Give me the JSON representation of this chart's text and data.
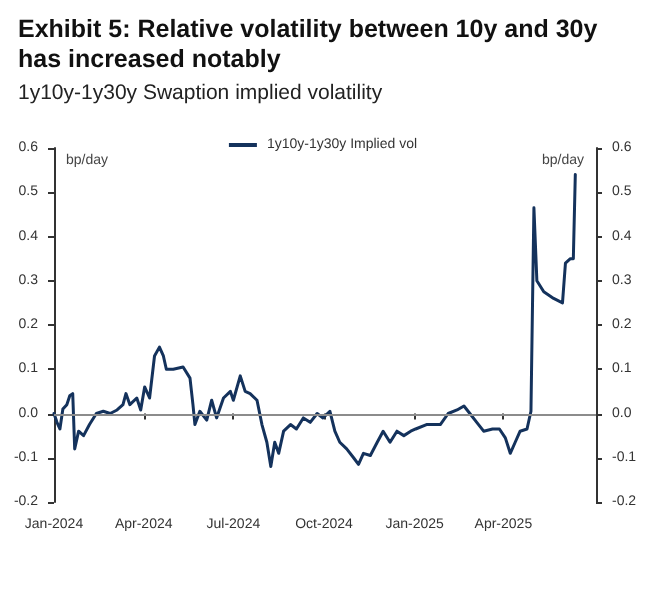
{
  "chart_data": {
    "type": "line",
    "title": "Exhibit 5: Relative volatility between 10y and 30y has increased notably",
    "subtitle": "1y10y-1y30y Swaption implied volatility",
    "ylabel": "bp/day",
    "y2label": "bp/day",
    "legend": "top",
    "grid": false,
    "marker": "none",
    "line_style": "solid",
    "xlim": [
      "2024-01-01",
      "2025-07-04"
    ],
    "xticks": [
      {
        "value": "2024-01-01",
        "label": "Jan-2024"
      },
      {
        "value": "2024-04-01",
        "label": "Apr-2024"
      },
      {
        "value": "2024-07-01",
        "label": "Jul-2024"
      },
      {
        "value": "2024-10-01",
        "label": "Oct-2024"
      },
      {
        "value": "2025-01-01",
        "label": "Jan-2025"
      },
      {
        "value": "2025-04-01",
        "label": "Apr-2025"
      }
    ],
    "ylim": [
      -0.2,
      0.6
    ],
    "yticks": [
      -0.2,
      -0.1,
      {
        "value": 0,
        "label": "0.0"
      },
      0.1,
      0.2,
      0.3,
      0.4,
      0.5,
      0.6
    ],
    "y2lim": [
      -0.2,
      0.6
    ],
    "y2ticks": [
      -0.2,
      -0.1,
      {
        "value": 0,
        "label": "0.0"
      },
      0.1,
      0.2,
      0.3,
      0.4,
      0.5,
      0.6
    ],
    "ref_lines": [
      {
        "axis": "y",
        "value": 0,
        "color": "#8c8c8c"
      }
    ],
    "x": [
      "2024-01-01",
      "2024-01-04",
      "2024-01-07",
      "2024-01-10",
      "2024-01-14",
      "2024-01-17",
      "2024-01-20",
      "2024-01-22",
      "2024-01-26",
      "2024-01-31",
      "2024-02-06",
      "2024-02-13",
      "2024-02-20",
      "2024-02-27",
      "2024-03-05",
      "2024-03-11",
      "2024-03-14",
      "2024-03-18",
      "2024-03-25",
      "2024-03-29",
      "2024-04-02",
      "2024-04-07",
      "2024-04-12",
      "2024-04-17",
      "2024-04-21",
      "2024-04-24",
      "2024-05-01",
      "2024-05-11",
      "2024-05-18",
      "2024-05-21",
      "2024-05-23",
      "2024-05-28",
      "2024-06-04",
      "2024-06-09",
      "2024-06-14",
      "2024-06-21",
      "2024-06-28",
      "2024-07-01",
      "2024-07-08",
      "2024-07-13",
      "2024-07-18",
      "2024-07-25",
      "2024-07-30",
      "2024-08-04",
      "2024-08-08",
      "2024-08-12",
      "2024-08-16",
      "2024-08-21",
      "2024-08-28",
      "2024-09-03",
      "2024-09-10",
      "2024-09-17",
      "2024-09-24",
      "2024-09-30",
      "2024-10-07",
      "2024-10-12",
      "2024-10-17",
      "2024-10-24",
      "2024-10-31",
      "2024-11-05",
      "2024-11-10",
      "2024-11-17",
      "2024-11-24",
      "2024-11-30",
      "2024-12-07",
      "2024-12-14",
      "2024-12-21",
      "2024-12-28",
      "2025-01-02",
      "2025-01-13",
      "2025-01-27",
      "2025-02-04",
      "2025-02-13",
      "2025-02-20",
      "2025-02-26",
      "2025-03-05",
      "2025-03-12",
      "2025-03-21",
      "2025-03-28",
      "2025-04-03",
      "2025-04-08",
      "2025-04-13",
      "2025-04-18",
      "2025-04-25",
      "2025-04-29",
      "2025-05-02",
      "2025-05-05",
      "2025-05-12",
      "2025-05-22",
      "2025-05-31",
      "2025-06-03",
      "2025-06-08",
      "2025-06-11",
      "2025-06-13"
    ],
    "series": [
      {
        "name": "1y10y-1y30y Implied vol",
        "color": "#14325c",
        "values": [
          0.0,
          -0.02,
          -0.035,
          0.01,
          0.02,
          0.04,
          0.045,
          -0.08,
          -0.04,
          -0.05,
          -0.025,
          0.0,
          0.005,
          0.0,
          0.008,
          0.02,
          0.045,
          0.02,
          0.035,
          0.008,
          0.06,
          0.035,
          0.13,
          0.15,
          0.13,
          0.1,
          0.1,
          0.105,
          0.08,
          0.02,
          -0.025,
          0.005,
          -0.015,
          0.03,
          -0.01,
          0.035,
          0.05,
          0.03,
          0.085,
          0.05,
          0.045,
          0.03,
          -0.025,
          -0.065,
          -0.12,
          -0.065,
          -0.09,
          -0.04,
          -0.025,
          -0.035,
          -0.01,
          -0.02,
          0.0,
          -0.01,
          0.005,
          -0.04,
          -0.065,
          -0.08,
          -0.1,
          -0.115,
          -0.09,
          -0.095,
          -0.065,
          -0.04,
          -0.065,
          -0.04,
          -0.05,
          -0.04,
          -0.035,
          -0.025,
          -0.025,
          0.0,
          0.008,
          0.017,
          0.0,
          -0.02,
          -0.04,
          -0.035,
          -0.035,
          -0.055,
          -0.09,
          -0.065,
          -0.04,
          -0.035,
          0.005,
          0.465,
          0.3,
          0.275,
          0.26,
          0.25,
          0.34,
          0.35,
          0.35,
          0.54
        ]
      }
    ]
  }
}
